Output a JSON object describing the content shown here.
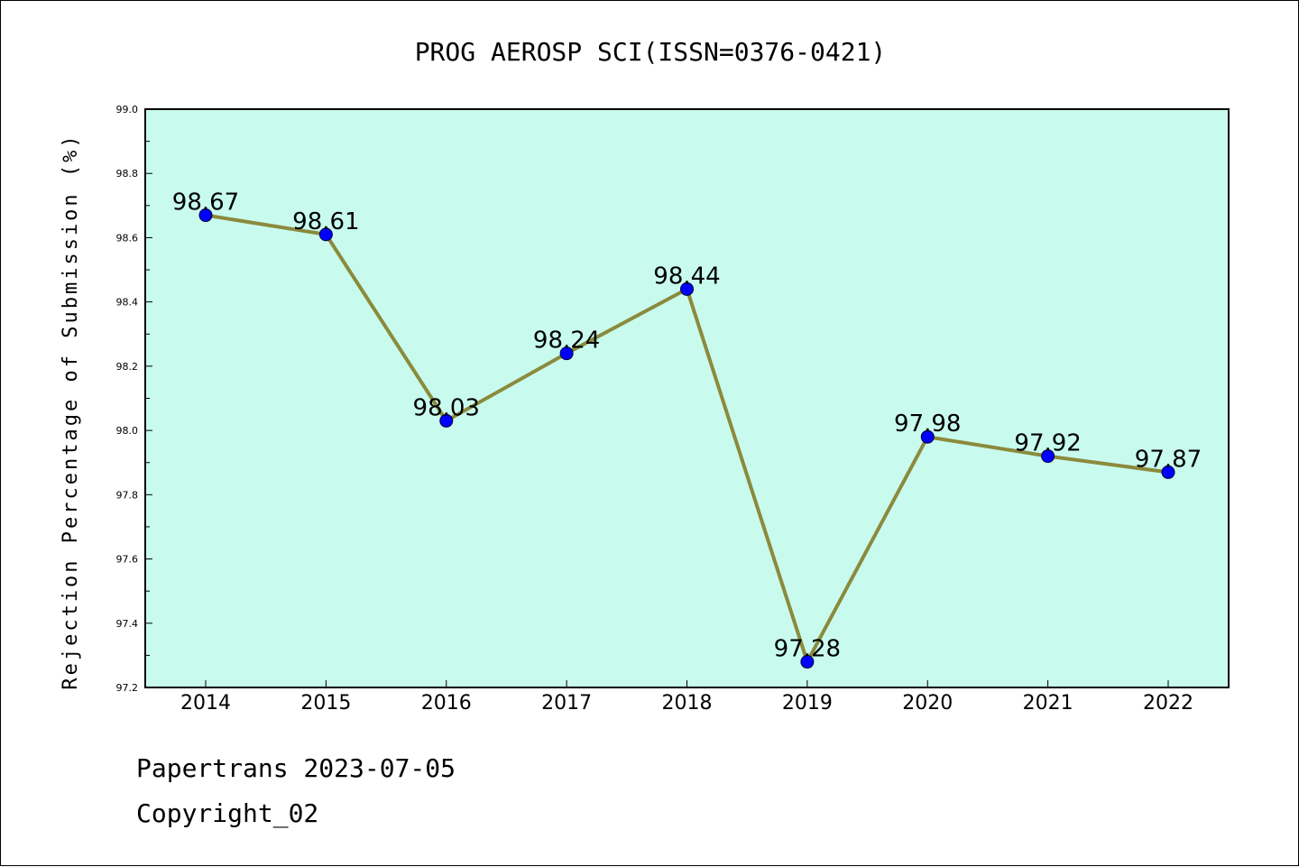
{
  "chart_data": {
    "type": "line",
    "title": "PROG AEROSP SCI(ISSN=0376-0421)",
    "xlabel": "",
    "ylabel": "Rejection Percentage of Submission (%)",
    "categories": [
      "2014",
      "2015",
      "2016",
      "2017",
      "2018",
      "2019",
      "2020",
      "2021",
      "2022"
    ],
    "values": [
      98.67,
      98.61,
      98.03,
      98.24,
      98.44,
      97.28,
      97.98,
      97.92,
      97.87
    ],
    "data_labels": [
      "98.67",
      "98.61",
      "98.03",
      "98.24",
      "98.44",
      "97.28",
      "97.98",
      "97.92",
      "97.87"
    ],
    "ylim": [
      97.2,
      99.0
    ],
    "yticks": [
      "97.2",
      "97.4",
      "97.6",
      "97.8",
      "98.0",
      "98.2",
      "98.4",
      "98.6",
      "98.8",
      "99.0"
    ],
    "grid": false,
    "colors": {
      "plot_background": "#c8fbee",
      "line": "#8b8a3c",
      "marker": "#0000ff"
    }
  },
  "footer": {
    "line1": "Papertrans 2023-07-05",
    "line2": "Copyright_02"
  }
}
